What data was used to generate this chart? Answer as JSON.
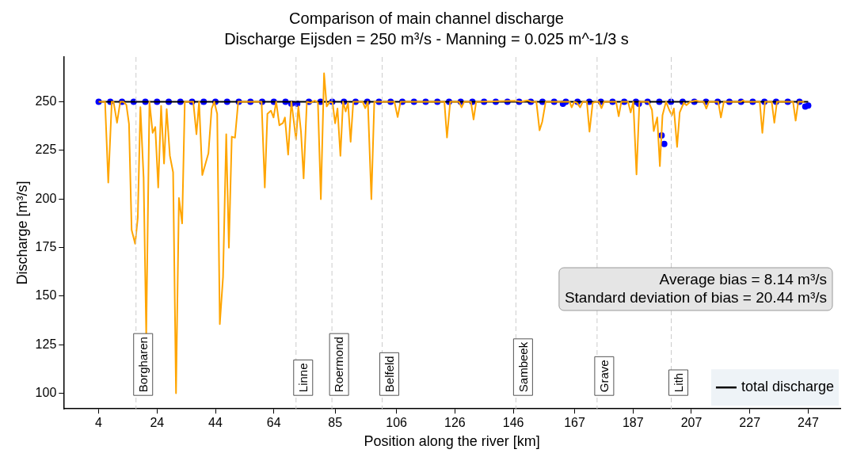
{
  "chart_data": {
    "type": "line",
    "title": "Comparison of main channel discharge",
    "subtitle": "Discharge Eijsden = 250 m³/s - Manning = 0.025 m^-1/3 s",
    "xlabel": "Position along the river [km]",
    "ylabel": "Discharge [m³/s]",
    "xlim": [
      -8,
      258
    ],
    "xticks": [
      4,
      24,
      44,
      64,
      85,
      106,
      126,
      146,
      167,
      187,
      207,
      227,
      247
    ],
    "ylim": [
      92,
      273
    ],
    "yticks": [
      100,
      125,
      150,
      175,
      200,
      225,
      250
    ],
    "grid": false,
    "legend": "bottom right",
    "annotations": [
      "Average bias = 8.14 m³/s",
      "Standard deviation of bias = 20.44 m³/s"
    ],
    "ref_lines": [
      {
        "axis": "x",
        "value": 16.8,
        "label": "Borgharen",
        "color": "#cccccc",
        "line_style": "dashed"
      },
      {
        "axis": "x",
        "value": 71.6,
        "label": "Linne",
        "color": "#cccccc",
        "line_style": "dashed"
      },
      {
        "axis": "x",
        "value": 83.9,
        "label": "Roermond",
        "color": "#cccccc",
        "line_style": "dashed"
      },
      {
        "axis": "x",
        "value": 101.1,
        "label": "Belfeld",
        "color": "#cccccc",
        "line_style": "dashed"
      },
      {
        "axis": "x",
        "value": 146.9,
        "label": "Sambeek",
        "color": "#cccccc",
        "line_style": "dashed"
      },
      {
        "axis": "x",
        "value": 174.7,
        "label": "Grave",
        "color": "#cccccc",
        "line_style": "dashed"
      },
      {
        "axis": "x",
        "value": 200.1,
        "label": "Lith",
        "color": "#cccccc",
        "line_style": "dashed"
      }
    ],
    "series": [
      {
        "type": "scatter",
        "color": "#0000ff",
        "marker": "circle",
        "x": [
          4,
          8,
          12,
          16,
          20,
          24,
          28,
          32,
          36,
          40,
          44,
          48,
          52,
          56,
          60,
          64,
          68,
          70,
          72,
          76,
          80,
          84,
          88,
          92,
          96,
          100,
          104,
          108,
          112,
          116,
          120,
          124,
          128,
          132,
          136,
          140,
          144,
          148,
          152,
          156,
          160,
          163,
          164,
          168,
          172,
          176,
          180,
          184,
          188,
          189,
          192,
          196,
          196.8,
          197.7,
          200,
          204,
          208,
          212,
          216,
          220,
          224,
          228,
          232,
          236,
          240,
          244,
          246,
          247
        ],
        "values": [
          250,
          250,
          250,
          250,
          250,
          250,
          250,
          250,
          250,
          250,
          250,
          250,
          250,
          250,
          250,
          250,
          250,
          249,
          249,
          250,
          250,
          250,
          250,
          250,
          250,
          250,
          250,
          250,
          250,
          250,
          250,
          250,
          250,
          250,
          250,
          250,
          250,
          250,
          250,
          250,
          250,
          249,
          250,
          250,
          250,
          250,
          250,
          250,
          250,
          249,
          250,
          250,
          232.7,
          228.3,
          250,
          250,
          250,
          250,
          250,
          250,
          250,
          250,
          250,
          250,
          250,
          250,
          247.5,
          248
        ]
      },
      {
        "name": "total discharge",
        "type": "line",
        "color": "#000000",
        "marker": "none",
        "x": [
          4,
          247
        ],
        "values": [
          250,
          250
        ]
      },
      {
        "type": "line",
        "color": "#ffa500",
        "marker": "none",
        "x": [
          4,
          6.2,
          7.3,
          8.5,
          9.1,
          10.3,
          11.4,
          12.5,
          13.5,
          14.4,
          15.3,
          16.5,
          17.4,
          18.3,
          19.4,
          20.3,
          21.4,
          22.5,
          23.4,
          24.4,
          25.4,
          26.4,
          27.3,
          28.4,
          29.5,
          30.5,
          31.5,
          32.6,
          33.5,
          36.4,
          37.5,
          38.4,
          39.5,
          41.6,
          42.7,
          43.6,
          44.6,
          45.5,
          46.6,
          47.7,
          48.6,
          49.6,
          50.7,
          51.8,
          59.8,
          60.9,
          61.8,
          63,
          63.9,
          64.8,
          65.9,
          67.1,
          67.8,
          68.9,
          70,
          71.6,
          72.4,
          73.3,
          74.2,
          75.3,
          76.6,
          78,
          79.1,
          80.1,
          81.2,
          82.1,
          83.2,
          84.1,
          85,
          85.8,
          86.8,
          87.7,
          88.6,
          89.4,
          90.3,
          91.2,
          94.4,
          95.3,
          96.2,
          97.4,
          98.4,
          105.3,
          106.4,
          107.4,
          122.4,
          123.3,
          124.4,
          127.4,
          128.3,
          129.2,
          131.5,
          132.4,
          133.3,
          146.8,
          148.6,
          150.9,
          152.3,
          153.9,
          155,
          155.9,
          157.1,
          165.3,
          166,
          166.9,
          167.8,
          168.9,
          169.8,
          171.2,
          172.1,
          173.2,
          174.4,
          175.3,
          176.2,
          177.1,
          181.2,
          182.1,
          183,
          185.3,
          186.2,
          187.1,
          188.2,
          189.2,
          192.3,
          193.5,
          194.1,
          195.3,
          196.2,
          197.1,
          198.3,
          199.4,
          200.3,
          201,
          202.1,
          203,
          204.4,
          205.3,
          206.6,
          208.5,
          210.3,
          211.2,
          212.1,
          213,
          216.2,
          217.1,
          218.1,
          224,
          224.7,
          225.4,
          230.4,
          231.3,
          232.2,
          234.5,
          235.4,
          236.3,
          241.8,
          242.7,
          243.6,
          245.6
        ],
        "values": [
          250,
          250,
          208.4,
          250,
          250,
          239.2,
          250,
          250,
          248.4,
          238.6,
          184.1,
          176.9,
          190.2,
          247.2,
          211,
          130,
          250,
          234,
          237,
          205.9,
          247.8,
          218.2,
          246.2,
          222.2,
          213.7,
          100,
          200.5,
          187.4,
          250,
          250,
          233.3,
          250,
          212.3,
          223.5,
          246.5,
          250,
          243.8,
          135.6,
          159.8,
          233.3,
          174.9,
          232,
          231.5,
          250,
          250,
          205.9,
          243.8,
          245.4,
          241.9,
          250,
          237.9,
          239,
          241.9,
          222.8,
          250,
          230.7,
          247.6,
          234.6,
          210.6,
          250,
          249.5,
          250.5,
          249.5,
          199.9,
          264.6,
          247.6,
          250,
          249.5,
          238.9,
          246.5,
          222.2,
          250,
          245,
          249.5,
          229.4,
          250,
          250,
          246.7,
          250,
          199.9,
          250,
          250,
          242.1,
          250,
          250,
          231.6,
          250,
          250,
          247.1,
          250,
          250,
          240.9,
          250,
          250.5,
          250,
          250.7,
          250,
          250,
          235.3,
          239.6,
          250,
          250,
          247.1,
          250,
          249.5,
          247.1,
          250,
          250,
          234.6,
          249.5,
          250,
          250,
          246.7,
          250,
          250,
          242.5,
          250,
          250,
          244.5,
          250,
          212.6,
          250,
          250,
          245.8,
          234.9,
          241.9,
          216.9,
          243,
          250,
          245.8,
          243,
          246.5,
          226.8,
          244.5,
          249.5,
          248.2,
          250,
          250.6,
          250,
          250,
          246.5,
          250,
          250,
          241.9,
          250,
          250,
          250.6,
          250,
          250,
          234,
          250,
          250,
          239.2,
          250,
          250,
          240.3,
          250,
          250
        ]
      }
    ]
  }
}
